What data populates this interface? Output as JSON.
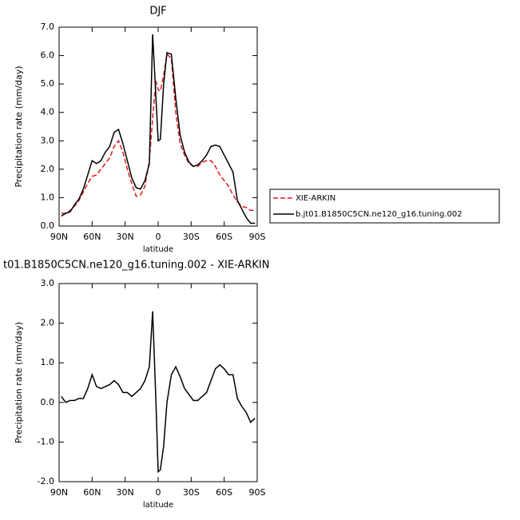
{
  "chart_data": [
    {
      "type": "line",
      "title": "DJF",
      "xlabel": "latitude",
      "ylabel": "Precipitation rate (mm/day)",
      "x": [
        88,
        84,
        80,
        76,
        72,
        68,
        64,
        60,
        56,
        52,
        48,
        44,
        40,
        36,
        32,
        28,
        24,
        20,
        16,
        12,
        8,
        5,
        2,
        0,
        -2,
        -5,
        -8,
        -12,
        -16,
        -20,
        -24,
        -28,
        -32,
        -36,
        -40,
        -44,
        -48,
        -52,
        -56,
        -60,
        -64,
        -68,
        -72,
        -76,
        -80,
        -84,
        -88
      ],
      "xlim": [
        90,
        -90
      ],
      "xticks": [
        {
          "value": 90,
          "label": "90N"
        },
        {
          "value": 60,
          "label": "60N"
        },
        {
          "value": 30,
          "label": "30N"
        },
        0,
        {
          "value": -30,
          "label": "30S"
        },
        {
          "value": -60,
          "label": "60S"
        },
        {
          "value": -90,
          "label": "90S"
        }
      ],
      "ylim": [
        0,
        7
      ],
      "yticks": [
        {
          "value": 0,
          "label": "0.0"
        },
        {
          "value": 1,
          "label": "1.0"
        },
        {
          "value": 2,
          "label": "2.0"
        },
        {
          "value": 3,
          "label": "3.0"
        },
        {
          "value": 4,
          "label": "4.0"
        },
        {
          "value": 5,
          "label": "5.0"
        },
        {
          "value": 6,
          "label": "6.0"
        },
        {
          "value": 7,
          "label": "7.0"
        }
      ],
      "legend": "right",
      "series": [
        {
          "name": "XIE-ARKIN",
          "color": "#e41a1c",
          "linestyle": "dashed",
          "values": [
            0.45,
            0.45,
            0.55,
            0.7,
            0.9,
            1.2,
            1.5,
            1.75,
            1.8,
            2.0,
            2.2,
            2.4,
            2.8,
            3.0,
            2.6,
            2.0,
            1.5,
            1.05,
            1.1,
            1.4,
            2.3,
            3.8,
            5.1,
            4.8,
            4.75,
            5.3,
            6.05,
            5.9,
            4.0,
            2.9,
            2.5,
            2.2,
            2.1,
            2.1,
            2.25,
            2.3,
            2.3,
            2.1,
            1.8,
            1.6,
            1.4,
            1.1,
            0.85,
            0.7,
            0.65,
            0.55,
            0.55
          ]
        },
        {
          "name": "b.jt01.B1850C5CN.ne120_g16.tuning.002",
          "color": "#000000",
          "linestyle": "solid",
          "values": [
            0.35,
            0.45,
            0.5,
            0.75,
            0.95,
            1.3,
            1.8,
            2.3,
            2.2,
            2.3,
            2.6,
            2.8,
            3.3,
            3.4,
            2.9,
            2.3,
            1.7,
            1.35,
            1.3,
            1.6,
            2.2,
            6.75,
            4.5,
            3.0,
            3.05,
            5.0,
            6.1,
            6.05,
            4.5,
            3.2,
            2.6,
            2.25,
            2.1,
            2.15,
            2.3,
            2.5,
            2.8,
            2.85,
            2.8,
            2.5,
            2.2,
            1.9,
            0.9,
            0.6,
            0.3,
            0.1,
            0.1
          ]
        }
      ]
    },
    {
      "type": "line",
      "title": "t01.B1850C5CN.ne120_g16.tuning.002 - XIE-ARKIN",
      "xlabel": "latitude",
      "ylabel": "Precipitation rate (mm/day)",
      "x": [
        88,
        84,
        80,
        76,
        72,
        68,
        64,
        60,
        56,
        52,
        48,
        44,
        40,
        36,
        32,
        28,
        24,
        20,
        16,
        12,
        8,
        5,
        2,
        0,
        -2,
        -5,
        -8,
        -12,
        -16,
        -20,
        -24,
        -28,
        -32,
        -36,
        -40,
        -44,
        -48,
        -52,
        -56,
        -60,
        -64,
        -68,
        -72,
        -76,
        -80,
        -84,
        -88
      ],
      "xlim": [
        90,
        -90
      ],
      "xticks": [
        {
          "value": 90,
          "label": "90N"
        },
        {
          "value": 60,
          "label": "60N"
        },
        {
          "value": 30,
          "label": "30N"
        },
        0,
        {
          "value": -30,
          "label": "30S"
        },
        {
          "value": -60,
          "label": "60S"
        },
        {
          "value": -90,
          "label": "90S"
        }
      ],
      "ylim": [
        -2,
        3
      ],
      "yticks": [
        {
          "value": -2,
          "label": "-2.0"
        },
        {
          "value": -1,
          "label": "-1.0"
        },
        {
          "value": 0,
          "label": "0.0"
        },
        {
          "value": 1,
          "label": "1.0"
        },
        {
          "value": 2,
          "label": "2.0"
        },
        {
          "value": 3,
          "label": "3.0"
        }
      ],
      "series": [
        {
          "color": "#000000",
          "linestyle": "solid",
          "values": [
            0.15,
            0.0,
            0.05,
            0.05,
            0.1,
            0.1,
            0.35,
            0.7,
            0.4,
            0.35,
            0.4,
            0.45,
            0.55,
            0.45,
            0.25,
            0.25,
            0.15,
            0.25,
            0.35,
            0.55,
            0.9,
            2.3,
            0.0,
            -1.75,
            -1.7,
            -1.1,
            0.0,
            0.7,
            0.9,
            0.65,
            0.35,
            0.2,
            0.05,
            0.05,
            0.15,
            0.25,
            0.55,
            0.85,
            0.95,
            0.85,
            0.7,
            0.7,
            0.1,
            -0.1,
            -0.25,
            -0.5,
            -0.4
          ]
        }
      ]
    }
  ]
}
